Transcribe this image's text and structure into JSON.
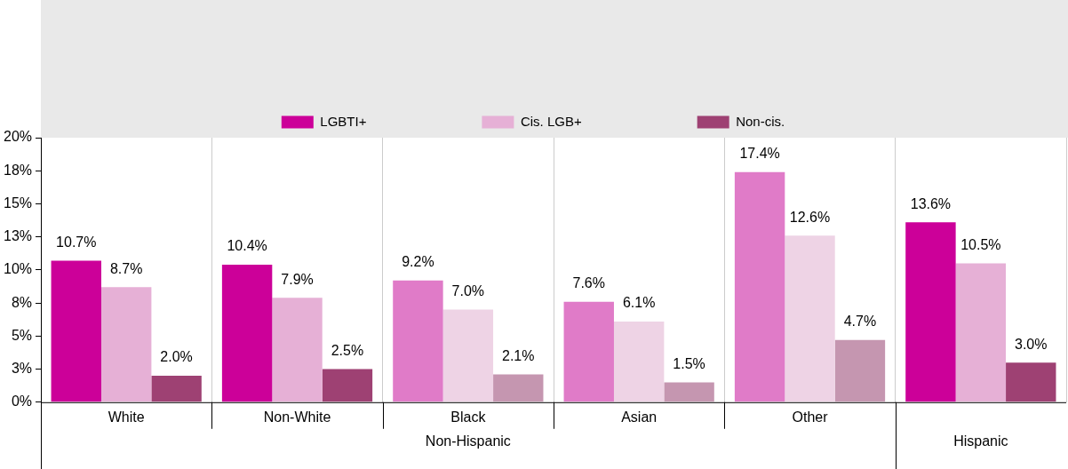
{
  "chart_data": {
    "type": "bar",
    "categories": [
      "White",
      "Non-White",
      "Black",
      "Asian",
      "Other",
      null
    ],
    "series": [
      {
        "name": "LGBTI+",
        "color": "#cc0099",
        "colors": [
          "#cc0099",
          "#cc0099",
          "#e07bc8",
          "#e07bc8",
          "#e07bc8",
          "#cc0099"
        ],
        "values": [
          10.7,
          10.4,
          9.2,
          7.6,
          17.4,
          13.6
        ],
        "value_labels": [
          "10.7%",
          "10.4%",
          "9.2%",
          "7.6%",
          "17.4%",
          "13.6%"
        ]
      },
      {
        "name": "Cis. LGB+",
        "color": "#e6b0d6",
        "colors": [
          "#e6b0d6",
          "#e6b0d6",
          "#eed3e5",
          "#eed3e5",
          "#eed3e5",
          "#e6b0d6"
        ],
        "values": [
          8.7,
          7.9,
          7.0,
          6.1,
          12.6,
          10.5
        ],
        "value_labels": [
          "8.7%",
          "7.9%",
          "7.0%",
          "6.1%",
          "12.6%",
          "10.5%"
        ]
      },
      {
        "name": "Non-cis.",
        "color": "#9e4173",
        "colors": [
          "#9e4173",
          "#9e4173",
          "#c596b0",
          "#c596b0",
          "#c596b0",
          "#9e4173"
        ],
        "values": [
          2.0,
          2.5,
          2.1,
          1.5,
          4.7,
          3.0
        ],
        "value_labels": [
          "2.0%",
          "2.5%",
          "2.1%",
          "1.5%",
          "4.7%",
          "3.0%"
        ]
      }
    ],
    "ylim": [
      0,
      20
    ],
    "yticks": [
      {
        "value": 0,
        "label": "0%"
      },
      {
        "value": 2.5,
        "label": "3%"
      },
      {
        "value": 5,
        "label": "5%"
      },
      {
        "value": 7.5,
        "label": "8%"
      },
      {
        "value": 10,
        "label": "10%"
      },
      {
        "value": 12.5,
        "label": "13%"
      },
      {
        "value": 15,
        "label": "15%"
      },
      {
        "value": 17.5,
        "label": "18%"
      },
      {
        "value": 20,
        "label": "20%"
      }
    ],
    "grid": "x",
    "legend": "top",
    "annotations": [
      "Non-Hispanic",
      "Hispanic"
    ]
  }
}
